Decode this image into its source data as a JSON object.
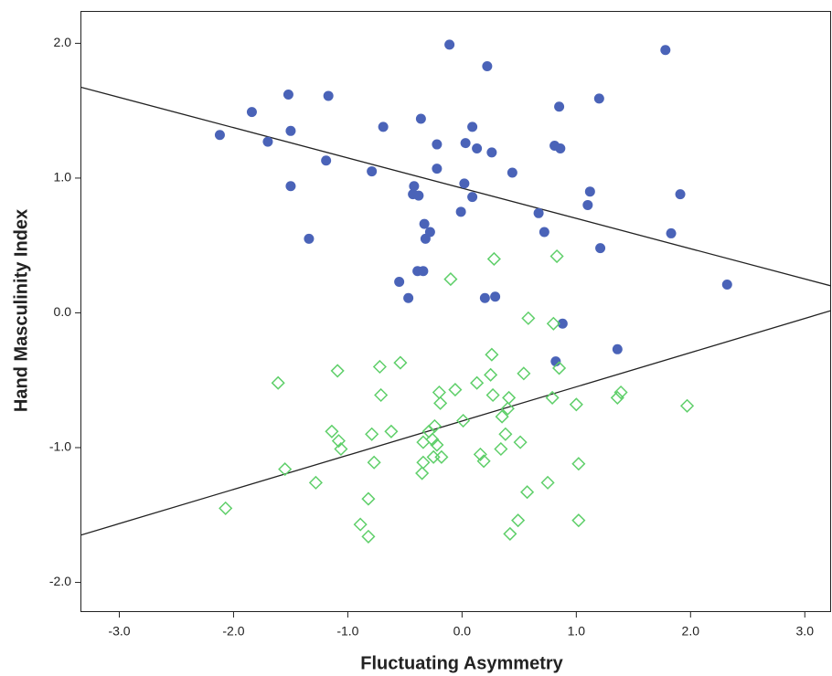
{
  "chart_data": {
    "type": "scatter",
    "x_label": "Fluctuating Asymmetry",
    "y_label": "Hand Masculinity Index",
    "xlim": [
      -3.34,
      3.23
    ],
    "ylim": [
      -2.22,
      2.24
    ],
    "xticks": [
      {
        "value": -3,
        "label": "-3.0"
      },
      {
        "value": -2,
        "label": "-2.0"
      },
      {
        "value": -1,
        "label": "-1.0"
      },
      {
        "value": 0,
        "label": "0.0"
      },
      {
        "value": 1,
        "label": "1.0"
      },
      {
        "value": 2,
        "label": "2.0"
      },
      {
        "value": 3,
        "label": "3.0"
      }
    ],
    "yticks": [
      {
        "value": -2,
        "label": "-2.0"
      },
      {
        "value": -1,
        "label": "-1.0"
      },
      {
        "value": 0,
        "label": "0.0"
      },
      {
        "value": 1,
        "label": "1.0"
      },
      {
        "value": 2,
        "label": "2.0"
      }
    ],
    "series": [
      {
        "color": "#4a63b8",
        "marker": "circle",
        "x": [
          -2.12,
          -1.84,
          -1.7,
          -1.52,
          -1.5,
          -1.5,
          -1.34,
          -1.17,
          -1.19,
          -0.79,
          -0.69,
          -0.55,
          -0.47,
          -0.42,
          -0.43,
          -0.38,
          -0.39,
          -0.34,
          -0.36,
          -0.33,
          -0.32,
          -0.28,
          -0.22,
          -0.22,
          -0.11,
          -0.01,
          0.02,
          0.03,
          0.09,
          0.09,
          0.13,
          0.2,
          0.22,
          0.26,
          0.29,
          0.44,
          0.67,
          0.72,
          0.81,
          0.86,
          0.85,
          0.88,
          0.82,
          1.1,
          1.12,
          1.2,
          1.21,
          1.36,
          1.78,
          1.83,
          1.91,
          2.32
        ],
        "values": [
          1.32,
          1.49,
          1.27,
          1.62,
          1.35,
          0.94,
          0.55,
          1.61,
          1.13,
          1.05,
          1.38,
          0.23,
          0.11,
          0.94,
          0.88,
          0.87,
          0.31,
          0.31,
          1.44,
          0.66,
          0.55,
          0.6,
          1.07,
          1.25,
          1.99,
          0.75,
          0.96,
          1.26,
          1.38,
          0.86,
          1.22,
          0.11,
          1.83,
          1.19,
          0.12,
          1.04,
          0.74,
          0.6,
          1.24,
          1.22,
          1.53,
          -0.08,
          -0.36,
          0.8,
          0.9,
          1.59,
          0.48,
          -0.27,
          1.95,
          0.59,
          0.88,
          0.21
        ]
      },
      {
        "color": "#5fcf6a",
        "marker": "diamond",
        "x": [
          -2.07,
          -1.61,
          -1.55,
          -1.28,
          -1.14,
          -1.09,
          -1.08,
          -1.06,
          -0.89,
          -0.82,
          -0.82,
          -0.79,
          -0.77,
          -0.72,
          -0.71,
          -0.62,
          -0.54,
          -0.35,
          -0.34,
          -0.34,
          -0.29,
          -0.26,
          -0.24,
          -0.25,
          -0.22,
          -0.2,
          -0.19,
          -0.18,
          -0.1,
          -0.06,
          0.01,
          0.13,
          0.16,
          0.19,
          0.25,
          0.26,
          0.27,
          0.28,
          0.34,
          0.35,
          0.38,
          0.4,
          0.41,
          0.42,
          0.49,
          0.51,
          0.54,
          0.57,
          0.58,
          0.75,
          0.79,
          0.8,
          0.83,
          0.85,
          1.0,
          1.02,
          1.02,
          1.36,
          1.39,
          1.97
        ],
        "values": [
          -1.45,
          -0.52,
          -1.16,
          -1.26,
          -0.88,
          -0.43,
          -0.95,
          -1.01,
          -1.57,
          -1.66,
          -1.38,
          -0.9,
          -1.11,
          -0.4,
          -0.61,
          -0.88,
          -0.37,
          -1.19,
          -1.11,
          -0.96,
          -0.88,
          -0.94,
          -0.84,
          -1.07,
          -0.98,
          -0.59,
          -0.67,
          -1.07,
          0.25,
          -0.57,
          -0.8,
          -0.52,
          -1.05,
          -1.1,
          -0.46,
          -0.31,
          -0.61,
          0.4,
          -1.01,
          -0.77,
          -0.9,
          -0.71,
          -0.63,
          -1.64,
          -1.54,
          -0.96,
          -0.45,
          -1.33,
          -0.04,
          -1.26,
          -0.63,
          -0.08,
          0.42,
          -0.41,
          -0.68,
          -1.12,
          -1.54,
          -0.63,
          -0.59,
          -0.69
        ]
      }
    ],
    "lines": [
      {
        "color": "#222222",
        "x": [
          -3.34,
          3.23
        ],
        "y": [
          1.675,
          0.2
        ]
      },
      {
        "color": "#222222",
        "x": [
          -3.34,
          3.23
        ],
        "y": [
          -1.65,
          0.017
        ]
      }
    ]
  }
}
